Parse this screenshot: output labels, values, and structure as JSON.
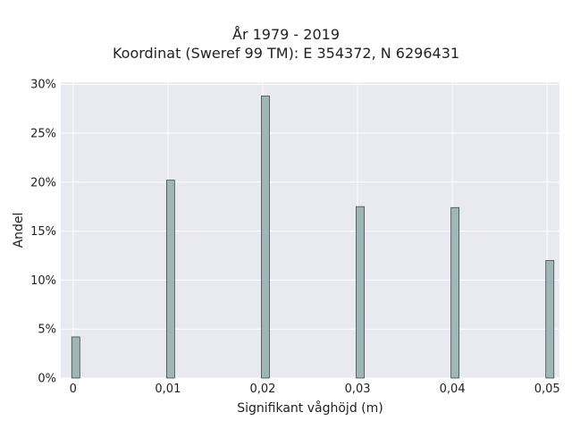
{
  "chart_data": {
    "type": "bar",
    "title": "År 1979 - 2019",
    "subtitle": "Koordinat (Sweref 99 TM): E 354372, N 6296431",
    "xlabel": "Signifikant våghöjd (m)",
    "ylabel": "Andel",
    "x": [
      0,
      0.01,
      0.02,
      0.03,
      0.04,
      0.05
    ],
    "x_tick_labels": [
      "0",
      "0,01",
      "0,02",
      "0,03",
      "0,04",
      "0,05"
    ],
    "values": [
      4.2,
      20.2,
      28.8,
      17.5,
      17.4,
      12.0
    ],
    "value_unit": "%",
    "y_ticks": [
      0,
      5,
      10,
      15,
      20,
      25,
      30
    ],
    "y_tick_labels": [
      "0%",
      "5%",
      "10%",
      "15%",
      "20%",
      "25%",
      "30%"
    ],
    "xlim": [
      -0.0013,
      0.0513
    ],
    "ylim": [
      0,
      30.2
    ],
    "grid": true,
    "bar_color": "#9fb6b8",
    "bar_edge_color": "#3f4a4b",
    "plot_background": "#e9e9f1"
  }
}
